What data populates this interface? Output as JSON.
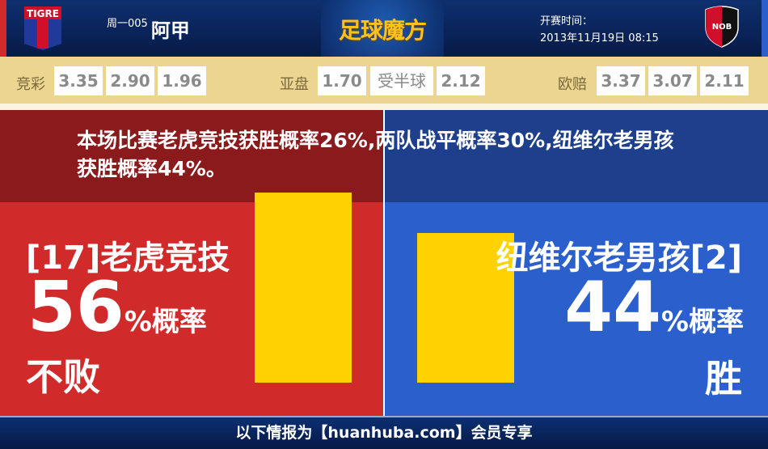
{
  "header": {
    "home_badge_text": "TIGRE",
    "away_badge_text": "NOB",
    "match_no": "周一005",
    "league": "阿甲",
    "brand": "足球魔方",
    "time_label": "开赛时间：",
    "time_value": "2013年11月19日 08:15"
  },
  "odds": {
    "jingcai": {
      "label": "竞彩",
      "values": [
        "3.35",
        "2.90",
        "1.96"
      ]
    },
    "yapan": {
      "label": "亚盘",
      "values": [
        "1.70",
        "受半球",
        "2.12"
      ]
    },
    "oupei": {
      "label": "欧赔",
      "values": [
        "3.37",
        "3.07",
        "2.11"
      ]
    }
  },
  "banner": {
    "text": "本场比赛老虎竞技获胜概率26%,两队战平概率30%,纽维尔老男孩获胜概率44%。"
  },
  "home": {
    "name": "[17]老虎竞技",
    "percent": "56",
    "percent_suffix": "%概率",
    "result": "不败",
    "bar_value": 56
  },
  "away": {
    "name": "纽维尔老男孩[2]",
    "percent": "44",
    "percent_suffix": "%概率",
    "result": "胜",
    "bar_value": 44
  },
  "colors": {
    "home": "#d12a2a",
    "away": "#2a5fcc",
    "bar": "#ffd200"
  },
  "footer": {
    "text": "以下情报为【huanhuba.com】会员专享"
  }
}
